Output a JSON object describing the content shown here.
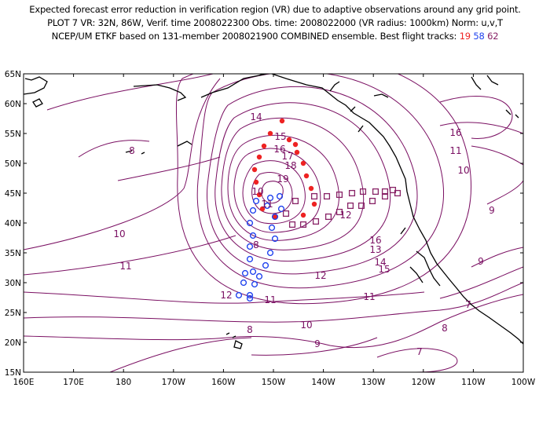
{
  "header": {
    "line1": "Expected forecast error reduction in verification region (VR) due to adaptive observations around any grid point.",
    "line2": "PLOT 7 VR: 32N, 86W, Verif. time 2008022300 Obs. time: 2008022000 (VR radius: 1000km) Norm: u,v,T",
    "line3_prefix": "NCEP/UM ETKF based on 131-member 2008021900 COMBINED ensemble.  Best flight tracks:",
    "track_red": "19",
    "track_blue": "58",
    "track_purple": "62"
  },
  "axes": {
    "lat_labels": [
      "65N",
      "60N",
      "55N",
      "50N",
      "45N",
      "40N",
      "35N",
      "30N",
      "25N",
      "20N",
      "15N"
    ],
    "lon_labels": [
      "160E",
      "170E",
      "180",
      "170W",
      "160W",
      "150W",
      "140W",
      "130W",
      "120W",
      "110W",
      "100W"
    ]
  },
  "colors": {
    "contour": "#7a0f62",
    "coast": "#000000",
    "track_red": "#ee2222",
    "track_blue": "#2244ee",
    "track_purple": "#882266"
  },
  "contour_labels": [
    "14",
    "15",
    "16",
    "17",
    "18",
    "19",
    "8",
    "10",
    "11",
    "12",
    "13",
    "14",
    "15",
    "16",
    "11",
    "10",
    "9",
    "8",
    "7",
    "12",
    "11",
    "10",
    "9",
    "9",
    "8",
    "7",
    "8",
    "10",
    "11",
    "12",
    "11",
    "16"
  ]
}
